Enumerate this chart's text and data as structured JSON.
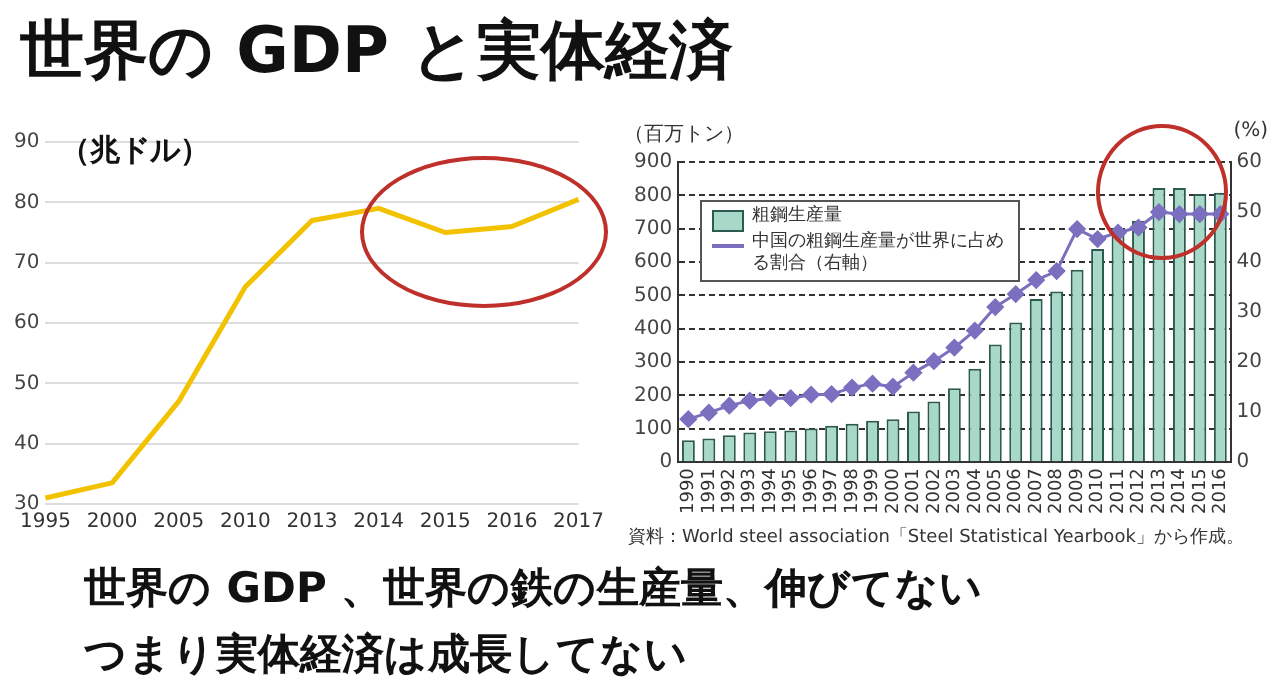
{
  "chart_data": [
    {
      "type": "line",
      "title": "世界の GDP と実体経済",
      "ylabel": "（兆ドル）",
      "categories": [
        "1995",
        "2000",
        "2005",
        "2010",
        "2013",
        "2014",
        "2015",
        "2016",
        "2017"
      ],
      "series": [
        {
          "color": "#f2c200",
          "values": [
            31,
            33.5,
            47,
            66,
            77,
            79,
            75,
            76,
            80.5
          ]
        }
      ],
      "ylim": [
        30,
        90
      ],
      "yticks": [
        30,
        40,
        50,
        60,
        70,
        80,
        90
      ],
      "grid": "y",
      "marker": "none",
      "annotations": [
        "世界の GDP 、世界の鉄の生産量、伸びてない",
        "つまり実体経済は成長してない"
      ]
    },
    {
      "type": "bar",
      "ylabel": "（百万トン）",
      "y2label": "(%)",
      "categories": [
        "1990",
        "1991",
        "1992",
        "1993",
        "1994",
        "1995",
        "1996",
        "1997",
        "1998",
        "1999",
        "2000",
        "2001",
        "2002",
        "2003",
        "2004",
        "2005",
        "2006",
        "2007",
        "2008",
        "2009",
        "2010",
        "2011",
        "2012",
        "2013",
        "2014",
        "2015",
        "2016"
      ],
      "series": [
        {
          "name": "粗鋼生産量",
          "type": "bar",
          "color": "#a8d8c8",
          "values": [
            66,
            71,
            81,
            89,
            93,
            95,
            101,
            109,
            115,
            124,
            129,
            152,
            182,
            222,
            280,
            353,
            419,
            489,
            512,
            577,
            639,
            683,
            724,
            822,
            822,
            804,
            808
          ]
        },
        {
          "name": "中国の粗鋼生産量が世界に占める割合（右軸）",
          "type": "line",
          "axis": "y2",
          "color": "#7b6fc0",
          "marker": "diamond",
          "values": [
            8.6,
            9.9,
            11.3,
            12.3,
            12.8,
            12.8,
            13.5,
            13.6,
            14.9,
            15.7,
            15.1,
            17.9,
            20.2,
            22.9,
            26.3,
            31,
            33.6,
            36.4,
            38.2,
            46.6,
            44.6,
            45.9,
            46.9,
            50,
            49.6,
            49.6,
            49.6
          ]
        }
      ],
      "ylim": [
        0,
        900
      ],
      "yticks": [
        0,
        100,
        200,
        300,
        400,
        500,
        600,
        700,
        800,
        900
      ],
      "y2lim": [
        0,
        60
      ],
      "y2ticks": [
        0,
        10,
        20,
        30,
        40,
        50,
        60
      ],
      "grid": "y",
      "legend": "top left",
      "annotations": [
        "資料：World steel association「Steel Statistical Yearbook」から作成。"
      ]
    }
  ]
}
